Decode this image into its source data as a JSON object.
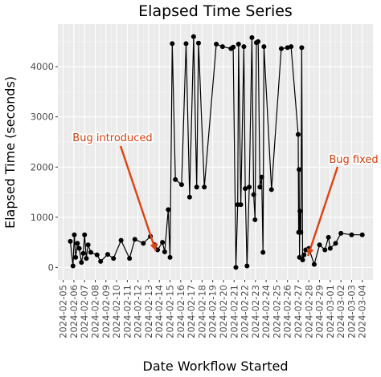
{
  "chart_data": {
    "type": "line",
    "title": "Elapsed Time Series",
    "xlabel": "Date Workflow Started",
    "ylabel": "Elapsed Time (seconds)",
    "x_tick_labels": [
      "2024-02-05",
      "2024-02-06",
      "2024-02-07",
      "2024-02-08",
      "2024-02-09",
      "2024-02-10",
      "2024-02-11",
      "2024-02-12",
      "2024-02-13",
      "2024-02-14",
      "2024-02-15",
      "2024-02-16",
      "2024-02-17",
      "2024-02-18",
      "2024-02-19",
      "2024-02-20",
      "2024-02-21",
      "2024-02-22",
      "2024-02-23",
      "2024-02-24",
      "2024-02-25",
      "2024-02-26",
      "2024-02-27",
      "2024-02-28",
      "2024-02-29",
      "2024-03-01",
      "2024-03-02",
      "2024-03-03",
      "2024-03-04"
    ],
    "y_ticks": [
      0,
      1000,
      2000,
      3000,
      4000
    ],
    "y_tick_labels": [
      "0",
      "1000",
      "2000",
      "3000",
      "4000"
    ],
    "xlim": [
      "2024-02-04T12:00",
      "2024-03-05T00:00"
    ],
    "ylim": [
      -250,
      4850
    ],
    "grid": true,
    "panel_background": "#ebebeb",
    "line_color": "#000000",
    "annotation_color": "#e0420f",
    "x": [
      "2024-02-05T16:00",
      "2024-02-05T22:00",
      "2024-02-06T01:00",
      "2024-02-06T04:00",
      "2024-02-06T08:00",
      "2024-02-06T12:00",
      "2024-02-06T17:00",
      "2024-02-06T21:00",
      "2024-02-07T00:00",
      "2024-02-07T04:00",
      "2024-02-07T08:00",
      "2024-02-07T14:00",
      "2024-02-08T04:00",
      "2024-02-08T12:00",
      "2024-02-09T04:00",
      "2024-02-09T17:00",
      "2024-02-10T10:00",
      "2024-02-11T05:00",
      "2024-02-11T17:00",
      "2024-02-12T12:00",
      "2024-02-13T04:00",
      "2024-02-13T14:00",
      "2024-02-13T20:00",
      "2024-02-14T07:00",
      "2024-02-14T12:00",
      "2024-02-14T20:00",
      "2024-02-15T00:00",
      "2024-02-15T05:00",
      "2024-02-15T12:00",
      "2024-02-16T02:00",
      "2024-02-16T12:00",
      "2024-02-16T20:00",
      "2024-02-17T05:00",
      "2024-02-17T12:00",
      "2024-02-17T16:00",
      "2024-02-18T05:00",
      "2024-02-19T08:00",
      "2024-02-19T22:00",
      "2024-02-20T17:00",
      "2024-02-20T22:00",
      "2024-02-21T04:00",
      "2024-02-21T08:00",
      "2024-02-21T10:00",
      "2024-02-21T15:00",
      "2024-02-21T22:00",
      "2024-02-22T01:00",
      "2024-02-22T05:00",
      "2024-02-22T10:00",
      "2024-02-22T16:00",
      "2024-02-22T20:00",
      "2024-02-22T23:00",
      "2024-02-23T02:00",
      "2024-02-23T06:00",
      "2024-02-23T10:00",
      "2024-02-23T14:00",
      "2024-02-23T17:00",
      "2024-02-23T19:00",
      "2024-02-24T12:00",
      "2024-02-25T10:00",
      "2024-02-26T00:00",
      "2024-02-26T08:00",
      "2024-02-27T00:00",
      "2024-02-27T01:00",
      "2024-02-27T02:00",
      "2024-02-27T03:00",
      "2024-02-27T04:00",
      "2024-02-27T06:00",
      "2024-02-27T08:00",
      "2024-02-27T10:00",
      "2024-02-27T13:00",
      "2024-02-27T17:00",
      "2024-02-28T00:00",
      "2024-02-28T12:00",
      "2024-02-29T00:00",
      "2024-02-29T12:00",
      "2024-02-29T20:00",
      "2024-03-01T00:00",
      "2024-03-01T12:00",
      "2024-03-02T00:00",
      "2024-03-03T00:00",
      "2024-03-04T00:00"
    ],
    "values": [
      520,
      30,
      650,
      200,
      480,
      380,
      100,
      280,
      650,
      180,
      450,
      300,
      250,
      120,
      260,
      180,
      540,
      180,
      560,
      480,
      620,
      450,
      350,
      500,
      310,
      1150,
      200,
      4460,
      1750,
      1650,
      4460,
      1400,
      4600,
      1600,
      4470,
      1600,
      4450,
      4400,
      4360,
      4390,
      0,
      1250,
      4450,
      1250,
      4400,
      1570,
      30,
      1600,
      4580,
      1450,
      950,
      4480,
      4500,
      1600,
      1800,
      300,
      4400,
      1550,
      4360,
      4380,
      4400,
      2650,
      700,
      1950,
      200,
      1120,
      700,
      4380,
      150,
      250,
      350,
      380,
      60,
      450,
      350,
      600,
      380,
      480,
      680,
      650,
      650
    ],
    "annotations": [
      {
        "text": "Bug introduced",
        "x": "2024-02-13T16:00",
        "y": 330
      },
      {
        "text": "Bug fixed",
        "x": "2024-02-27T22:00",
        "y": 230
      }
    ]
  }
}
